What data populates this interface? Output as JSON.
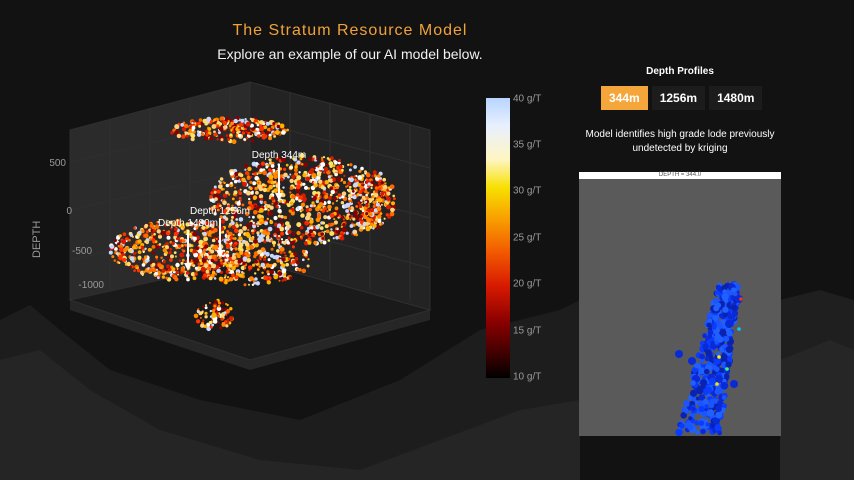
{
  "header": {
    "title": "The Stratum Resource Model",
    "subtitle": "Explore an example of our AI model below."
  },
  "plot3d": {
    "axis_title": "DEPTH",
    "depth_ticks": [
      "500",
      "0",
      "-500",
      "-1000"
    ],
    "annotations": [
      "Depth 344m",
      "Depth 1256m",
      "Depth 1480m"
    ]
  },
  "colorbar": {
    "ticks": [
      "40 g/T",
      "35 g/T",
      "30 g/T",
      "25 g/T",
      "20 g/T",
      "15 g/T",
      "10 g/T"
    ],
    "range": [
      10,
      40
    ]
  },
  "depth_profiles": {
    "title": "Depth Profiles",
    "buttons": [
      "344m",
      "1256m",
      "1480m"
    ],
    "active": "344m",
    "description": "Model identifies high grade lode previously undetected by kriging",
    "panel_title": "DEPTH = 344.0"
  },
  "colors": {
    "accent": "#f5a63a",
    "background": "#121212",
    "panel": "#5a5a5a",
    "profile_blue": "#0a2ad8"
  }
}
